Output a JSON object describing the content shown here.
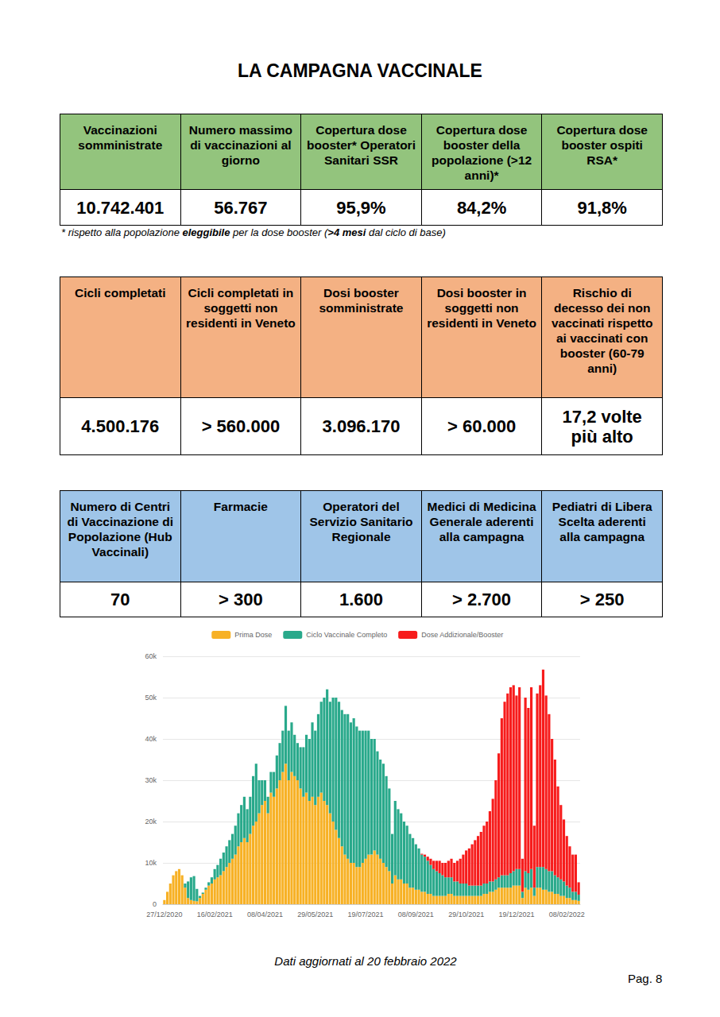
{
  "title": "LA CAMPAGNA VACCINALE",
  "tables": [
    {
      "color": "#93c47d",
      "header": [
        "Vaccinazioni somministrate",
        "Numero massimo di vaccinazioni al giorno",
        "Copertura dose booster* Operatori Sanitari SSR",
        "Copertura dose booster della popolazione (>12 anni)*",
        "Copertura dose booster ospiti RSA*"
      ],
      "values": [
        "10.742.401",
        "56.767",
        "95,9%",
        "84,2%",
        "91,8%"
      ]
    },
    {
      "color": "#f4b183",
      "header": [
        "Cicli completati",
        "Cicli completati in soggetti non residenti in Veneto",
        "Dosi booster somministrate",
        "Dosi booster in soggetti non residenti in Veneto",
        "Rischio di decesso dei non vaccinati rispetto ai vaccinati con booster (60-79 anni)"
      ],
      "values": [
        "4.500.176",
        "> 560.000",
        "3.096.170",
        "> 60.000",
        "17,2 volte più alto"
      ]
    },
    {
      "color": "#9fc5e8",
      "header": [
        "Numero di Centri di Vaccinazione di Popolazione (Hub Vaccinali)",
        "Farmacie",
        "Operatori del Servizio Sanitario Regionale",
        "Medici di Medicina Generale aderenti alla campagna",
        "Pediatri di Libera Scelta aderenti alla campagna"
      ],
      "values": [
        "70",
        "> 300",
        "1.600",
        "> 2.700",
        "> 250"
      ]
    }
  ],
  "footnote": [
    {
      "text": "* rispetto alla popolazione ",
      "bold": false
    },
    {
      "text": "eleggibile",
      "bold": true
    },
    {
      "text": " per la dose booster (",
      "bold": false
    },
    {
      "text": ">4 mesi",
      "bold": true
    },
    {
      "text": " dal ciclo di base)",
      "bold": false
    }
  ],
  "chart_data": {
    "type": "bar",
    "stacked": true,
    "legend": "top",
    "grid": true,
    "ylim": [
      0,
      60000
    ],
    "yticks": [
      0,
      {
        "value": 10000,
        "label": "10k"
      },
      {
        "value": 20000,
        "label": "20k"
      },
      {
        "value": 30000,
        "label": "30k"
      },
      {
        "value": 40000,
        "label": "40k"
      },
      {
        "value": 50000,
        "label": "50k"
      },
      {
        "value": 60000,
        "label": "60k"
      }
    ],
    "categories": [
      "27/12/2020",
      null,
      null,
      null,
      null,
      null,
      null,
      null,
      null,
      null,
      null,
      null,
      null,
      null,
      null,
      null,
      null,
      "16/02/2021",
      null,
      null,
      null,
      null,
      null,
      null,
      null,
      null,
      null,
      null,
      null,
      null,
      null,
      null,
      null,
      null,
      "08/04/2021",
      null,
      null,
      null,
      null,
      null,
      null,
      null,
      null,
      null,
      null,
      null,
      null,
      null,
      null,
      null,
      null,
      "29/05/2021",
      null,
      null,
      null,
      null,
      null,
      null,
      null,
      null,
      null,
      null,
      null,
      null,
      null,
      null,
      null,
      null,
      "19/07/2021",
      null,
      null,
      null,
      null,
      null,
      null,
      null,
      null,
      null,
      null,
      null,
      null,
      null,
      null,
      null,
      null,
      "08/09/2021",
      null,
      null,
      null,
      null,
      null,
      null,
      null,
      null,
      null,
      null,
      null,
      null,
      null,
      null,
      null,
      null,
      "29/10/2021",
      null,
      null,
      null,
      null,
      null,
      null,
      null,
      null,
      null,
      null,
      null,
      null,
      null,
      null,
      null,
      null,
      "19/12/2021",
      null,
      null,
      null,
      null,
      null,
      null,
      null,
      null,
      null,
      null,
      null,
      null,
      null,
      null,
      null,
      null,
      "08/02/2022",
      null,
      null,
      null,
      null
    ],
    "series": [
      {
        "name": "Prima Dose",
        "color": "#f7b125",
        "values": [
          1000,
          3000,
          5000,
          7000,
          8000,
          8500,
          7000,
          4000,
          1500,
          1000,
          800,
          700,
          1500,
          2500,
          3500,
          4500,
          5000,
          6000,
          6500,
          7000,
          8000,
          9000,
          10000,
          11000,
          12000,
          14000,
          15000,
          16000,
          15000,
          17000,
          19000,
          20000,
          22000,
          24000,
          25000,
          22000,
          27000,
          26000,
          28000,
          30000,
          32000,
          34000,
          30000,
          32000,
          31000,
          30000,
          28000,
          26000,
          27000,
          25000,
          26000,
          24000,
          26000,
          27000,
          25000,
          24000,
          22000,
          20000,
          18000,
          16000,
          14000,
          12000,
          11000,
          10000,
          10000,
          9000,
          9000,
          10000,
          11000,
          12000,
          12000,
          13000,
          12000,
          11000,
          10000,
          9000,
          8000,
          5000,
          7000,
          6000,
          6000,
          5000,
          5000,
          4000,
          4000,
          3500,
          3500,
          3000,
          3000,
          2500,
          2500,
          2000,
          2000,
          2000,
          2000,
          2000,
          2500,
          2500,
          2000,
          2000,
          2000,
          2000,
          2000,
          2000,
          2000,
          2000,
          2000,
          2000,
          2500,
          2500,
          3000,
          3000,
          3500,
          4000,
          4000,
          4000,
          4000,
          4000,
          4500,
          4500,
          4500,
          1500,
          4000,
          3500,
          4000,
          2000,
          4000,
          4000,
          3500,
          3500,
          3000,
          3000,
          2500,
          2500,
          2000,
          2000,
          1500,
          1500,
          1000,
          1000,
          800
        ]
      },
      {
        "name": "Ciclo Vaccinale Completo",
        "color": "#29a98b",
        "values": [
          0,
          0,
          0,
          0,
          0,
          0,
          0,
          1000,
          4000,
          5500,
          6000,
          3000,
          500,
          300,
          500,
          800,
          1500,
          2500,
          3000,
          4000,
          4500,
          5000,
          5500,
          6000,
          7000,
          8000,
          9000,
          10000,
          8000,
          9000,
          12000,
          14000,
          8000,
          6000,
          5000,
          4000,
          5000,
          6000,
          8000,
          9000,
          10000,
          14000,
          12000,
          12000,
          10000,
          9000,
          10000,
          12000,
          14000,
          15000,
          18000,
          18000,
          20000,
          22000,
          25000,
          28000,
          27000,
          30000,
          32000,
          33000,
          33000,
          34000,
          35000,
          34000,
          35000,
          34000,
          33000,
          32000,
          31000,
          30000,
          28000,
          27000,
          25000,
          24000,
          24000,
          22000,
          20000,
          12000,
          18000,
          17000,
          16000,
          15000,
          14000,
          13000,
          12000,
          11000,
          10000,
          9000,
          8500,
          8000,
          7000,
          6500,
          6000,
          5500,
          5000,
          4500,
          4000,
          4000,
          3500,
          3500,
          3000,
          3000,
          3000,
          2500,
          2500,
          2500,
          2500,
          2500,
          2500,
          2500,
          2500,
          2500,
          2500,
          2500,
          3000,
          3000,
          3000,
          3500,
          3500,
          4000,
          4000,
          1500,
          4000,
          4000,
          4500,
          2000,
          5000,
          5000,
          5500,
          5000,
          5000,
          5000,
          4500,
          4000,
          4000,
          3500,
          3000,
          2500,
          2000,
          2000,
          1500
        ]
      },
      {
        "name": "Dose Addizionale/Booster",
        "color": "#f71c1c",
        "values": [
          0,
          0,
          0,
          0,
          0,
          0,
          0,
          0,
          0,
          0,
          0,
          0,
          0,
          0,
          0,
          0,
          0,
          0,
          0,
          0,
          0,
          0,
          0,
          0,
          0,
          0,
          0,
          0,
          0,
          0,
          0,
          0,
          0,
          0,
          0,
          0,
          0,
          0,
          0,
          0,
          0,
          0,
          0,
          0,
          0,
          0,
          0,
          0,
          0,
          0,
          0,
          0,
          0,
          0,
          0,
          0,
          0,
          0,
          0,
          0,
          0,
          0,
          0,
          0,
          0,
          0,
          0,
          0,
          0,
          0,
          0,
          0,
          0,
          0,
          0,
          0,
          0,
          0,
          0,
          0,
          0,
          0,
          0,
          0,
          0,
          0,
          0,
          200,
          500,
          1000,
          1500,
          2000,
          2500,
          3000,
          3000,
          3500,
          4000,
          4500,
          4500,
          5000,
          6000,
          7000,
          8000,
          9000,
          10000,
          11000,
          12000,
          13000,
          14000,
          15000,
          17000,
          20000,
          24000,
          30000,
          38000,
          42000,
          44000,
          45000,
          45000,
          42000,
          44000,
          8000,
          42000,
          40000,
          44000,
          15000,
          42000,
          44000,
          47767,
          42000,
          38000,
          32000,
          28000,
          22000,
          18000,
          15000,
          12000,
          10000,
          9000,
          9000,
          3000
        ]
      }
    ]
  },
  "note": "Dati aggiornati al 20 febbraio 2022",
  "page": "Pag. 8"
}
